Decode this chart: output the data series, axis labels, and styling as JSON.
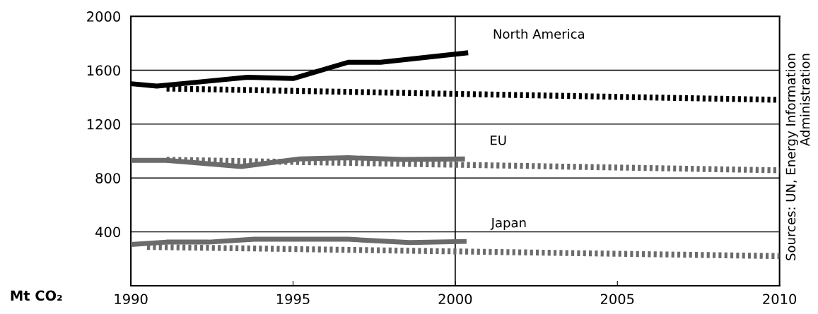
{
  "chart_data": {
    "type": "line",
    "ylabel": "Mt CO₂",
    "series": [
      {
        "name": "North America",
        "color": "#000000",
        "line_style": "solid",
        "x": [
          1990,
          1990.8,
          1993.6,
          1995.0,
          1996.7,
          1997.7,
          2000.4
        ],
        "values": [
          1500,
          1482,
          1548,
          1538,
          1659,
          1659,
          1730
        ]
      },
      {
        "color": "#000000",
        "line_style": "dotted",
        "x": [
          1991.1,
          2010
        ],
        "values": [
          1464,
          1380
        ]
      },
      {
        "name": "EU",
        "color": "#6b6b6b",
        "line_style": "solid",
        "x": [
          1990,
          1991.1,
          1993.4,
          1995.2,
          1996.7,
          1998.4,
          2000.3
        ],
        "values": [
          931,
          931,
          885,
          941,
          950,
          937,
          941
        ]
      },
      {
        "color": "#6b6b6b",
        "line_style": "dotted",
        "x": [
          1991.1,
          2010
        ],
        "values": [
          935,
          857
        ]
      },
      {
        "name": "Japan",
        "color": "#6b6b6b",
        "line_style": "solid",
        "x": [
          1990,
          1991.1,
          1992.4,
          1993.8,
          1996.7,
          1998.6,
          2000.35
        ],
        "values": [
          306,
          324,
          324,
          345,
          345,
          321,
          329
        ]
      },
      {
        "color": "#6b6b6b",
        "line_style": "dotted",
        "x": [
          1990.5,
          2010
        ],
        "values": [
          288,
          220
        ]
      }
    ],
    "xlim": [
      1990,
      2010
    ],
    "xticks": [
      1990,
      1995,
      2000,
      2005,
      2010
    ],
    "ylim": [
      0,
      2000
    ],
    "yticks": [
      400,
      800,
      1200,
      1600,
      2000
    ],
    "grid": "y",
    "ref_lines": [
      {
        "axis": "x",
        "value": 2000,
        "color": "#000000"
      }
    ],
    "annotations": [
      "Sources: UN, Energy Information\nAdministration"
    ]
  }
}
